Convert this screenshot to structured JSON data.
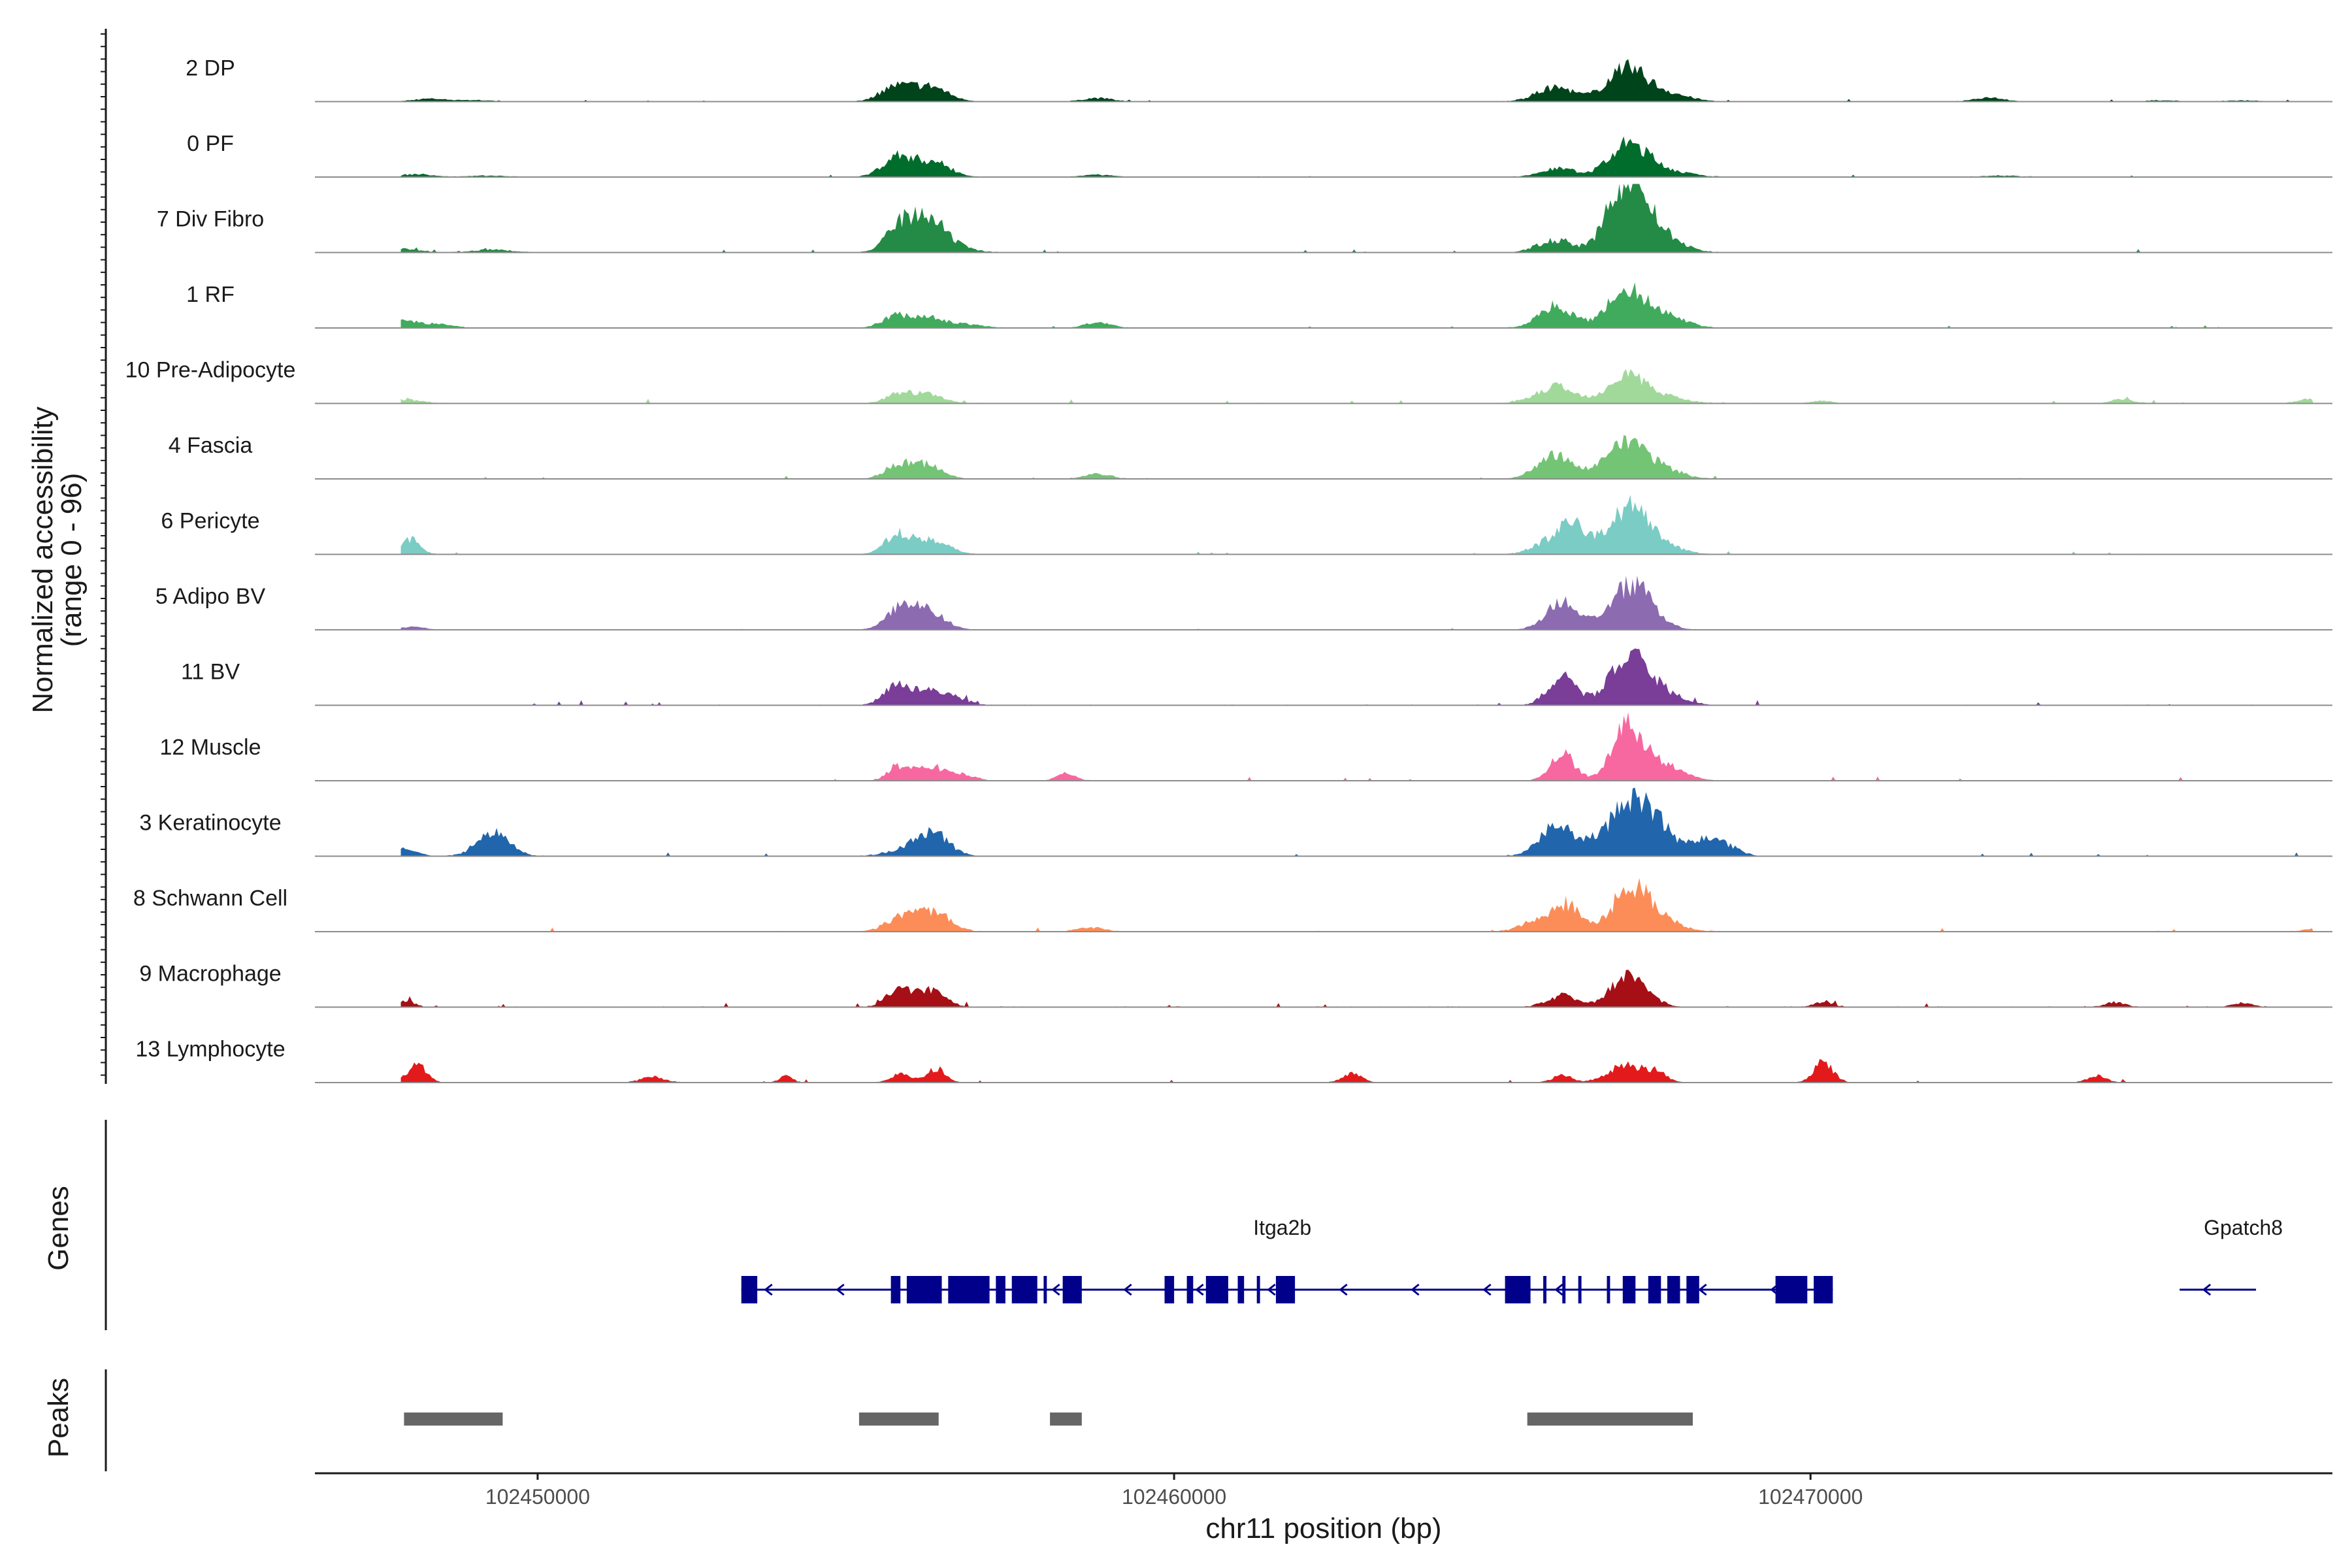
{
  "chart_data": {
    "type": "area",
    "title": "",
    "ylabel": "Normalized accessibility",
    "ylabel_range": "(range 0 - 96)",
    "ylim": [
      0,
      96
    ],
    "xlabel": "chr11 position (bp)",
    "xlim": [
      102446500,
      102478200
    ],
    "xticks": [
      102450000,
      102460000,
      102470000
    ],
    "xtick_labels": [
      "102450000",
      "102460000",
      "102470000"
    ],
    "tracks": [
      {
        "name": "2 DP",
        "color": "#00441b",
        "peaks": [
          [
            102448300,
            4,
            250
          ],
          [
            102449000,
            2,
            300
          ],
          [
            102455600,
            20,
            230
          ],
          [
            102456150,
            22,
            280
          ],
          [
            102458800,
            5,
            230
          ],
          [
            102466000,
            20,
            300
          ],
          [
            102467100,
            45,
            300
          ],
          [
            102467700,
            12,
            350
          ],
          [
            102472800,
            6,
            230
          ],
          [
            102475500,
            1.5,
            300
          ],
          [
            102476800,
            1.5,
            300
          ]
        ],
        "noise": 1.2
      },
      {
        "name": "0 PF",
        "color": "#006d2c",
        "peaks": [
          [
            102448100,
            4,
            250
          ],
          [
            102449200,
            2,
            300
          ],
          [
            102455650,
            28,
            230
          ],
          [
            102456200,
            22,
            270
          ],
          [
            102458800,
            3,
            250
          ],
          [
            102466050,
            12,
            280
          ],
          [
            102467150,
            46,
            300
          ],
          [
            102467750,
            8,
            350
          ],
          [
            102473000,
            2,
            300
          ]
        ],
        "noise": 1.4
      },
      {
        "name": "7 Div Fibro",
        "color": "#238b45",
        "peaks": [
          [
            102447900,
            5,
            250
          ],
          [
            102449300,
            4,
            300
          ],
          [
            102455700,
            38,
            220
          ],
          [
            102456150,
            45,
            240
          ],
          [
            102456600,
            7,
            250
          ],
          [
            102466000,
            18,
            280
          ],
          [
            102466900,
            35,
            220
          ],
          [
            102467200,
            85,
            260
          ],
          [
            102467650,
            22,
            320
          ]
        ],
        "noise": 2.0
      },
      {
        "name": "1 RF",
        "color": "#41ab5d",
        "peaks": [
          [
            102447900,
            10,
            230
          ],
          [
            102448450,
            5,
            230
          ],
          [
            102455600,
            16,
            200
          ],
          [
            102456100,
            16,
            250
          ],
          [
            102456700,
            5,
            300
          ],
          [
            102458800,
            8,
            200
          ],
          [
            102466000,
            32,
            260
          ],
          [
            102467100,
            50,
            300
          ],
          [
            102467700,
            18,
            320
          ]
        ],
        "noise": 1.3
      },
      {
        "name": "10 Pre-Adipocyte",
        "color": "#a1d99b",
        "peaks": [
          [
            102447900,
            6,
            250
          ],
          [
            102455650,
            12,
            200
          ],
          [
            102456100,
            13,
            250
          ],
          [
            102466000,
            24,
            300
          ],
          [
            102467100,
            40,
            280
          ],
          [
            102467650,
            10,
            350
          ],
          [
            102470200,
            4,
            150
          ],
          [
            102474900,
            6,
            160
          ],
          [
            102477800,
            6,
            150
          ]
        ],
        "noise": 2.2
      },
      {
        "name": "4 Fascia",
        "color": "#74c476",
        "peaks": [
          [
            102455650,
            18,
            200
          ],
          [
            102456100,
            20,
            250
          ],
          [
            102458800,
            7,
            200
          ],
          [
            102466000,
            35,
            280
          ],
          [
            102467100,
            48,
            320
          ],
          [
            102467700,
            12,
            300
          ]
        ],
        "noise": 1.5
      },
      {
        "name": "6 Pericyte",
        "color": "#7bccc4",
        "peaks": [
          [
            102448000,
            22,
            150
          ],
          [
            102455650,
            25,
            200
          ],
          [
            102456150,
            22,
            280
          ],
          [
            102466000,
            22,
            300
          ],
          [
            102466300,
            32,
            200
          ],
          [
            102467150,
            70,
            300
          ],
          [
            102467700,
            10,
            300
          ]
        ],
        "noise": 1.6
      },
      {
        "name": "5 Adipo BV",
        "color": "#8c6bb1",
        "peaks": [
          [
            102448000,
            4,
            250
          ],
          [
            102455700,
            30,
            220
          ],
          [
            102456150,
            25,
            250
          ],
          [
            102466100,
            40,
            250
          ],
          [
            102467200,
            65,
            320
          ]
        ],
        "noise": 1.0
      },
      {
        "name": "11 BV",
        "color": "#7a3d98",
        "peaks": [
          [
            102455650,
            28,
            200
          ],
          [
            102456150,
            20,
            280
          ],
          [
            102456600,
            6,
            200
          ],
          [
            102466100,
            40,
            220
          ],
          [
            102467150,
            68,
            300
          ],
          [
            102467700,
            15,
            300
          ]
        ],
        "noise": 2.4
      },
      {
        "name": "12 Muscle",
        "color": "#f768a1",
        "peaks": [
          [
            102455650,
            20,
            150
          ],
          [
            102456150,
            22,
            230
          ],
          [
            102456700,
            8,
            180
          ],
          [
            102458300,
            10,
            150
          ],
          [
            102466100,
            42,
            180
          ],
          [
            102467150,
            80,
            260
          ],
          [
            102467800,
            18,
            250
          ]
        ],
        "noise": 2.2
      },
      {
        "name": "3 Keratinocyte",
        "color": "#2166ac",
        "peaks": [
          [
            102447900,
            10,
            200
          ],
          [
            102449300,
            35,
            250
          ],
          [
            102456200,
            34,
            250
          ],
          [
            102455700,
            8,
            250
          ],
          [
            102466000,
            42,
            260
          ],
          [
            102467200,
            65,
            300
          ],
          [
            102467600,
            30,
            280
          ],
          [
            102468350,
            22,
            250
          ],
          [
            102468700,
            10,
            200
          ],
          [
            102466700,
            18,
            300
          ]
        ],
        "noise": 2.0
      },
      {
        "name": "8 Schwann Cell",
        "color": "#fc8d59",
        "peaks": [
          [
            102455750,
            22,
            250
          ],
          [
            102456250,
            24,
            250
          ],
          [
            102458700,
            6,
            200
          ],
          [
            102465800,
            20,
            280
          ],
          [
            102466200,
            32,
            200
          ],
          [
            102467200,
            60,
            300
          ],
          [
            102467700,
            12,
            300
          ],
          [
            102477900,
            4,
            150
          ]
        ],
        "noise": 2.4
      },
      {
        "name": "9 Macrophage",
        "color": "#a50f15",
        "peaks": [
          [
            102447900,
            8,
            150
          ],
          [
            102455650,
            22,
            180
          ],
          [
            102456150,
            25,
            230
          ],
          [
            102466100,
            16,
            230
          ],
          [
            102467150,
            45,
            280
          ],
          [
            102470200,
            8,
            150
          ],
          [
            102474800,
            7,
            150
          ],
          [
            102476800,
            6,
            150
          ]
        ],
        "noise": 2.6
      },
      {
        "name": "13 Lymphocyte",
        "color": "#e31a1c",
        "peaks": [
          [
            102448100,
            25,
            150
          ],
          [
            102453900,
            10,
            100
          ],
          [
            102455700,
            12,
            150
          ],
          [
            102456250,
            20,
            150
          ],
          [
            102462800,
            12,
            150
          ],
          [
            102466100,
            10,
            150
          ],
          [
            102467100,
            25,
            280
          ],
          [
            102467600,
            12,
            150
          ],
          [
            102470200,
            30,
            150
          ],
          [
            102474500,
            9,
            150
          ],
          [
            102451800,
            8,
            180
          ]
        ],
        "noise": 1.8
      }
    ],
    "gene_track": {
      "label": "Genes",
      "genes": [
        {
          "name": "Itga2b",
          "start": 102453200,
          "end": 102470350,
          "strand": "-",
          "label_x": 102461700,
          "exons": [
            [
              102453200,
              102453450
            ],
            [
              102455550,
              102455700
            ],
            [
              102455800,
              102456350
            ],
            [
              102456450,
              102457100
            ],
            [
              102457200,
              102457350
            ],
            [
              102457450,
              102457850
            ],
            [
              102457950,
              102458000
            ],
            [
              102458250,
              102458550
            ],
            [
              102459850,
              102460000
            ],
            [
              102460200,
              102460300
            ],
            [
              102460500,
              102460850
            ],
            [
              102461000,
              102461100
            ],
            [
              102461300,
              102461350
            ],
            [
              102461600,
              102461900
            ],
            [
              102465200,
              102465600
            ],
            [
              102465800,
              102465850
            ],
            [
              102466100,
              102466150
            ],
            [
              102466350,
              102466400
            ],
            [
              102466800,
              102466850
            ],
            [
              102467050,
              102467250
            ],
            [
              102467450,
              102467650
            ],
            [
              102467750,
              102467950
            ],
            [
              102468050,
              102468250
            ],
            [
              102469450,
              102469950
            ],
            [
              102470050,
              102470350
            ]
          ]
        },
        {
          "name": "Gpatch8",
          "start": 102475800,
          "end": 102477000,
          "strand": "-",
          "label_x": 102476800,
          "exons": []
        }
      ]
    },
    "peak_track": {
      "label": "Peaks",
      "regions": [
        [
          102447900,
          102449450
        ],
        [
          102455050,
          102456300
        ],
        [
          102458050,
          102458550
        ],
        [
          102465550,
          102468150
        ]
      ]
    }
  }
}
